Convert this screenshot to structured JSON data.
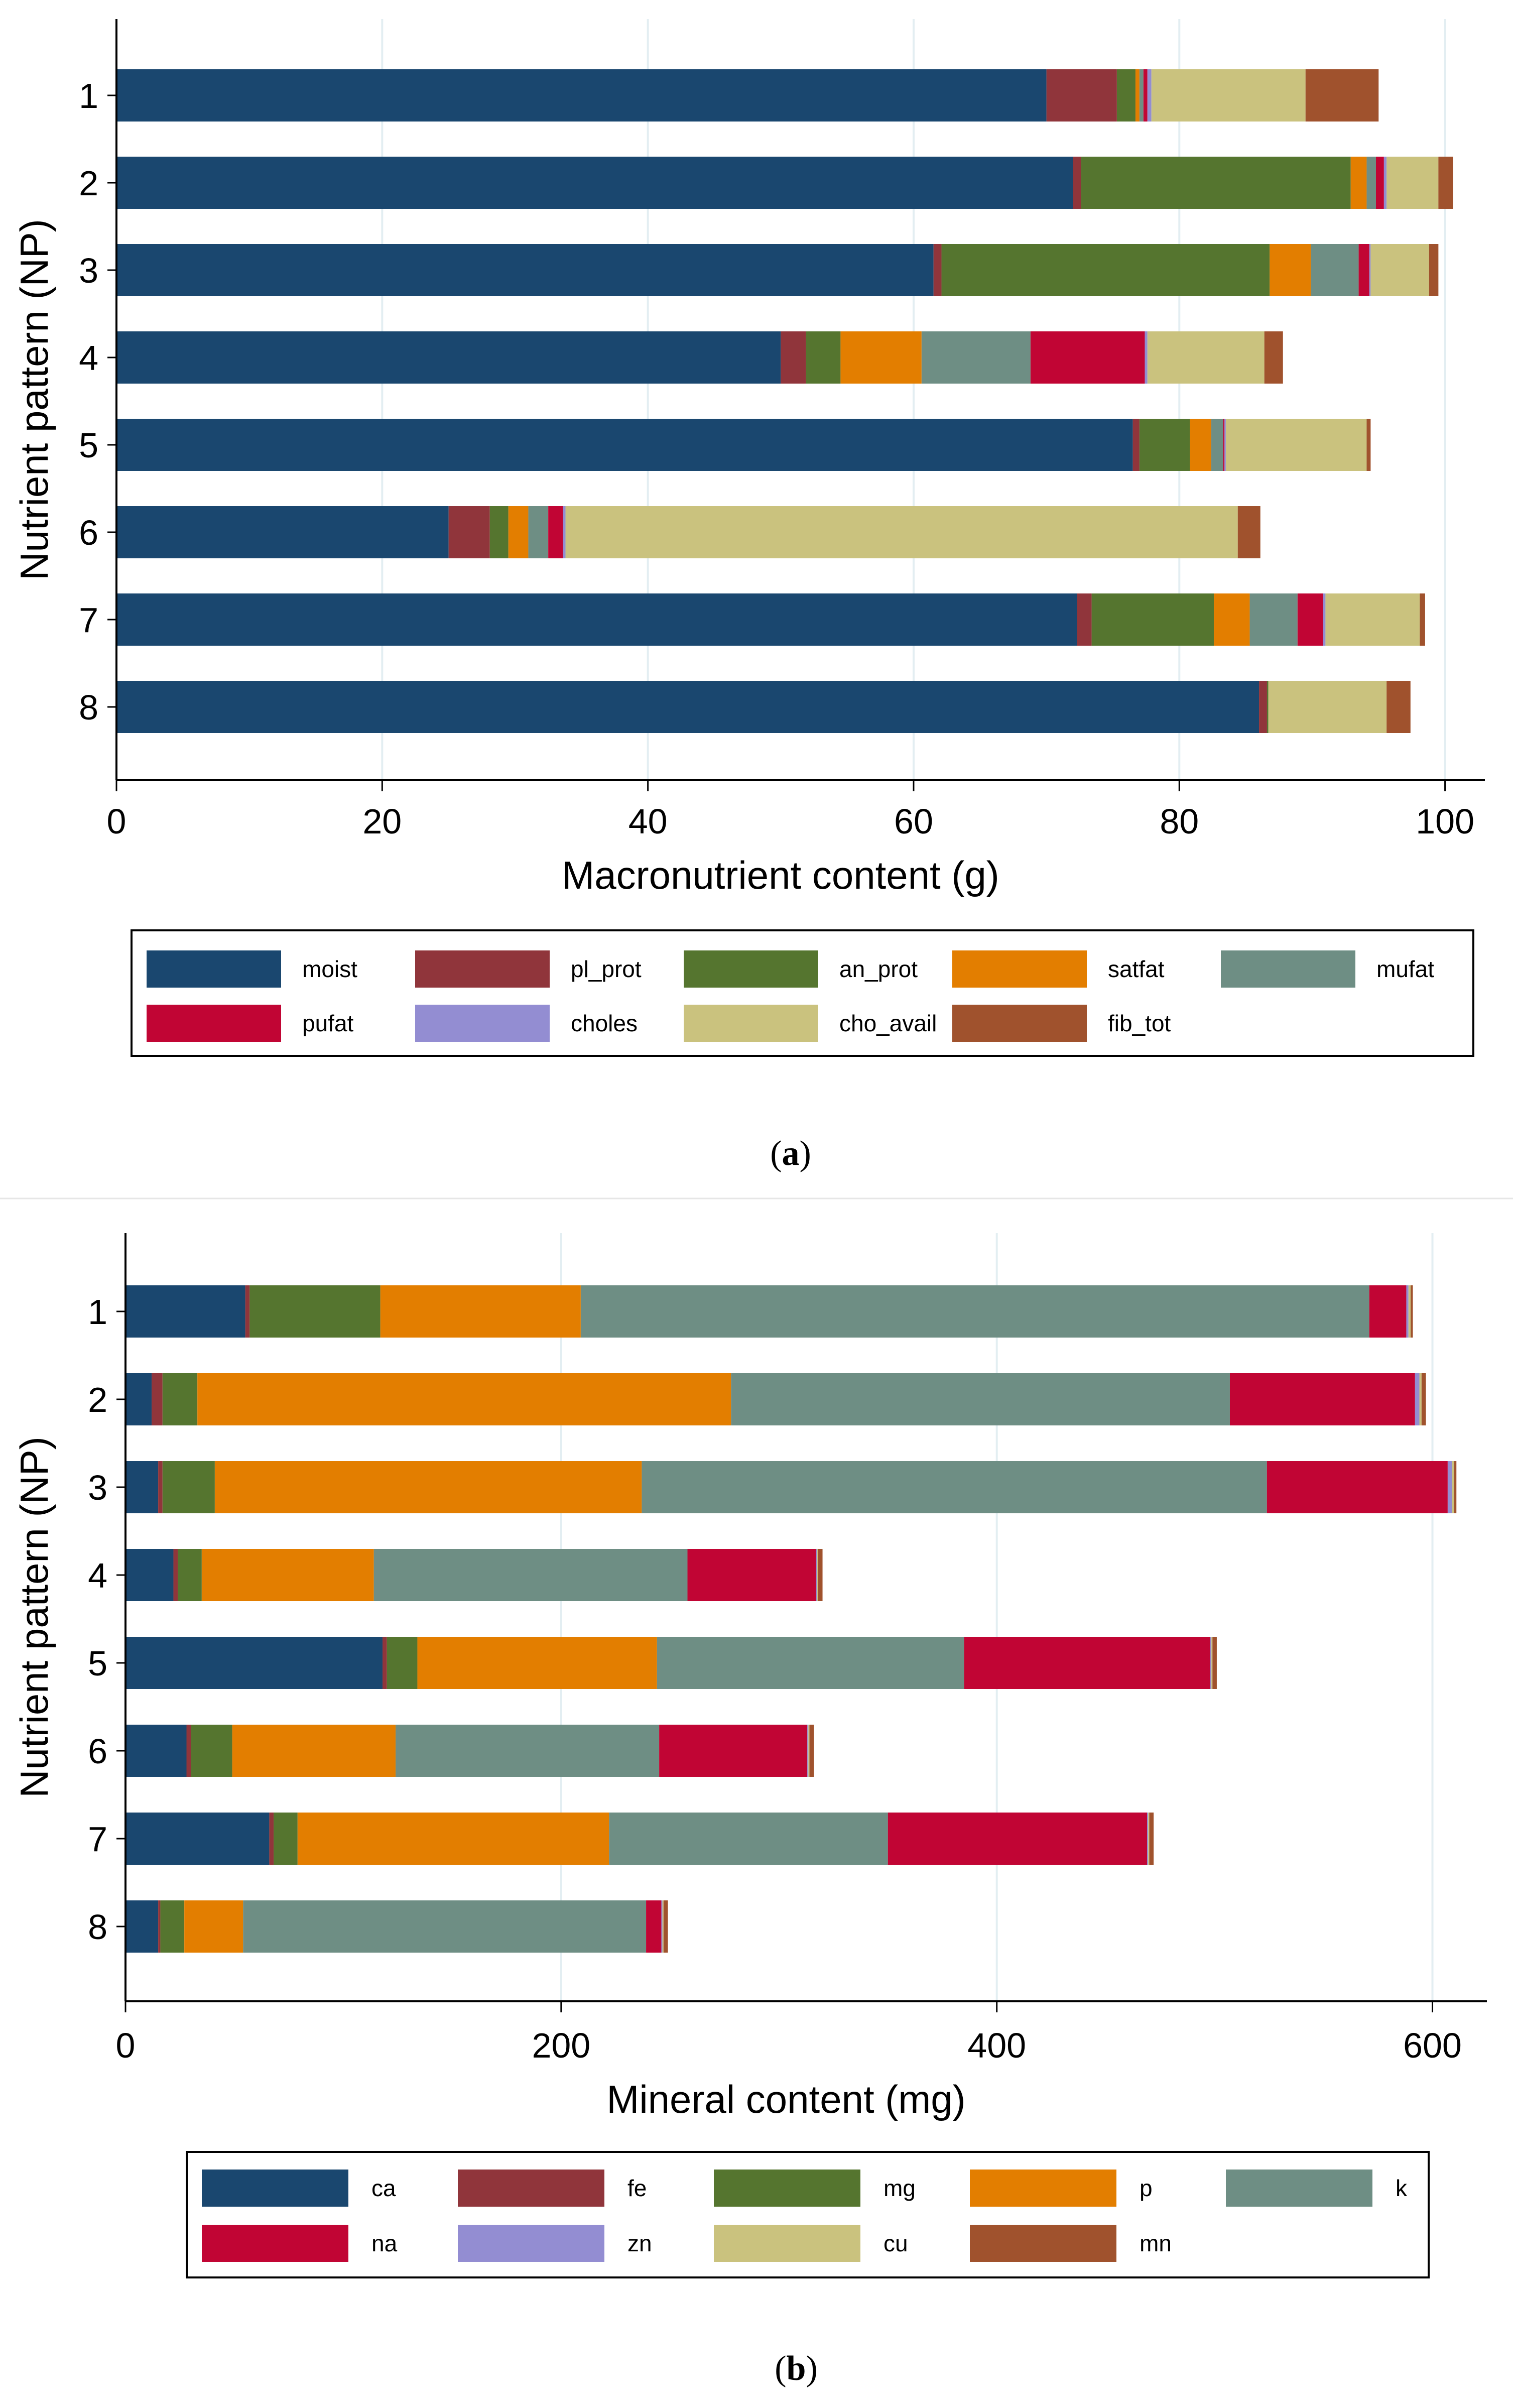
{
  "chart_data": [
    {
      "type": "bar",
      "orientation": "horizontal",
      "stacked": true,
      "caption": "a",
      "xlabel": "Macronutrient content (g)",
      "ylabel": "Nutrient pattern (NP)",
      "xlim": [
        0,
        103
      ],
      "xticks": [
        0,
        20,
        40,
        60,
        80,
        100
      ],
      "grid": true,
      "legend_position": "bottom",
      "categories": [
        "1",
        "2",
        "3",
        "4",
        "5",
        "6",
        "7",
        "8"
      ],
      "series": [
        {
          "name": "moist",
          "color": "#1a476f",
          "values": [
            70,
            72,
            61.5,
            50,
            76.5,
            25,
            72.3,
            86
          ]
        },
        {
          "name": "pl_prot",
          "color": "#90353b",
          "values": [
            5.3,
            0.6,
            0.6,
            1.9,
            0.5,
            3.1,
            1.1,
            0.6
          ]
        },
        {
          "name": "an_prot",
          "color": "#55752f",
          "values": [
            1.4,
            20.3,
            24.7,
            2.6,
            3.8,
            1.4,
            9.2,
            0.1
          ]
        },
        {
          "name": "satfat",
          "color": "#e37e00",
          "values": [
            0.3,
            1.2,
            3.1,
            6.1,
            1.6,
            1.5,
            2.7,
            0
          ]
        },
        {
          "name": "mufat",
          "color": "#6e8e84",
          "values": [
            0.3,
            0.7,
            3.6,
            8.2,
            0.9,
            1.5,
            3.6,
            0
          ]
        },
        {
          "name": "pufat",
          "color": "#c10534",
          "values": [
            0.3,
            0.6,
            0.8,
            8.6,
            0.1,
            1.1,
            1.9,
            0
          ]
        },
        {
          "name": "choles",
          "color": "#938dd2",
          "values": [
            0.3,
            0.2,
            0.1,
            0.2,
            0.1,
            0.2,
            0.2,
            0
          ]
        },
        {
          "name": "cho_avail",
          "color": "#cac27e",
          "values": [
            11.6,
            3.9,
            4.4,
            8.8,
            10.6,
            50.6,
            7.1,
            8.9
          ]
        },
        {
          "name": "fib_tot",
          "color": "#a0522d",
          "values": [
            5.5,
            1.1,
            0.7,
            1.4,
            0.3,
            1.7,
            0.4,
            1.8
          ]
        }
      ]
    },
    {
      "type": "bar",
      "orientation": "horizontal",
      "stacked": true,
      "caption": "b",
      "xlabel": "Mineral content (mg)",
      "ylabel": "Nutrient pattern (NP)",
      "xlim": [
        0,
        625
      ],
      "xticks": [
        0,
        200,
        400,
        600
      ],
      "grid": true,
      "legend_position": "bottom",
      "categories": [
        "1",
        "2",
        "3",
        "4",
        "5",
        "6",
        "7",
        "8"
      ],
      "series": [
        {
          "name": "ca",
          "color": "#1a476f",
          "values": [
            55,
            12,
            15,
            22,
            118,
            28,
            66,
            15
          ]
        },
        {
          "name": "fe",
          "color": "#90353b",
          "values": [
            2,
            5,
            2,
            2,
            2,
            2,
            2,
            1
          ]
        },
        {
          "name": "mg",
          "color": "#55752f",
          "values": [
            60,
            16,
            24,
            11,
            14,
            19,
            11,
            11
          ]
        },
        {
          "name": "p",
          "color": "#e37e00",
          "values": [
            92,
            245,
            196,
            79,
            110,
            75,
            143,
            27
          ]
        },
        {
          "name": "k",
          "color": "#6e8e84",
          "values": [
            362,
            229,
            287,
            144,
            141,
            121,
            128,
            185
          ]
        },
        {
          "name": "na",
          "color": "#c10534",
          "values": [
            17,
            85,
            83,
            59,
            113,
            68,
            119,
            7
          ]
        },
        {
          "name": "zn",
          "color": "#938dd2",
          "values": [
            1,
            2,
            2,
            0.5,
            0.5,
            0.5,
            0.5,
            0.5
          ]
        },
        {
          "name": "cu",
          "color": "#cac27e",
          "values": [
            1,
            1,
            1,
            0.5,
            0.5,
            0.5,
            0.5,
            0.5
          ]
        },
        {
          "name": "mn",
          "color": "#a0522d",
          "values": [
            1,
            2,
            1,
            2,
            2,
            2,
            2,
            2
          ]
        }
      ]
    }
  ]
}
